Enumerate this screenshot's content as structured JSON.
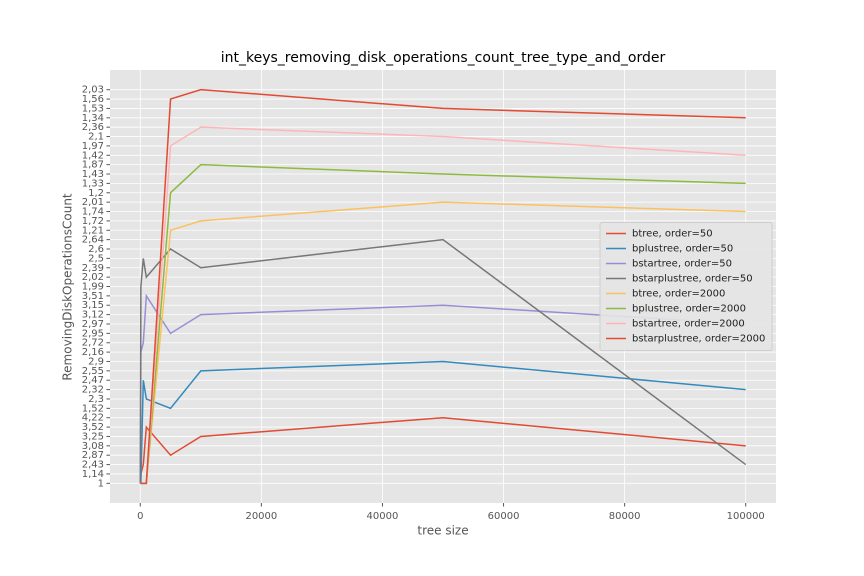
{
  "chart_data": {
    "type": "line",
    "title": "int_keys_removing_disk_operations_count_tree_type_and_order",
    "x_label": "tree size",
    "y_label": "RemovingDiskOperationsCount",
    "x": [
      10,
      100,
      500,
      1000,
      5000,
      10000,
      50000,
      100000
    ],
    "xlim": [
      -5000,
      105000
    ],
    "xticks": [
      0,
      20000,
      40000,
      60000,
      80000,
      100000
    ],
    "ylim": [
      -2.1,
      44.1
    ],
    "yticks": [
      {
        "value": 0,
        "label": "1"
      },
      {
        "value": 1,
        "label": "1,14"
      },
      {
        "value": 2,
        "label": "2,43"
      },
      {
        "value": 3,
        "label": "2,87"
      },
      {
        "value": 4,
        "label": "3,08"
      },
      {
        "value": 5,
        "label": "3,25"
      },
      {
        "value": 6,
        "label": "3,52"
      },
      {
        "value": 7,
        "label": "4,22"
      },
      {
        "value": 8,
        "label": "1,52"
      },
      {
        "value": 9,
        "label": "2,3"
      },
      {
        "value": 10,
        "label": "2,32"
      },
      {
        "value": 11,
        "label": "2,47"
      },
      {
        "value": 12,
        "label": "2,55"
      },
      {
        "value": 13,
        "label": "2,9"
      },
      {
        "value": 14,
        "label": "2,16"
      },
      {
        "value": 15,
        "label": "2,72"
      },
      {
        "value": 16,
        "label": "2,95"
      },
      {
        "value": 17,
        "label": "2,97"
      },
      {
        "value": 18,
        "label": "3,12"
      },
      {
        "value": 19,
        "label": "3,15"
      },
      {
        "value": 20,
        "label": "3,51"
      },
      {
        "value": 21,
        "label": "1,99"
      },
      {
        "value": 22,
        "label": "2,02"
      },
      {
        "value": 23,
        "label": "2,39"
      },
      {
        "value": 24,
        "label": "2,5"
      },
      {
        "value": 25,
        "label": "2,6"
      },
      {
        "value": 26,
        "label": "2,64"
      },
      {
        "value": 27,
        "label": "1,21"
      },
      {
        "value": 28,
        "label": "1,72"
      },
      {
        "value": 29,
        "label": "1,74"
      },
      {
        "value": 30,
        "label": "2,01"
      },
      {
        "value": 31,
        "label": "1,2"
      },
      {
        "value": 32,
        "label": "1,33"
      },
      {
        "value": 33,
        "label": "1,43"
      },
      {
        "value": 34,
        "label": "1,87"
      },
      {
        "value": 35,
        "label": "1,42"
      },
      {
        "value": 36,
        "label": "1,97"
      },
      {
        "value": 37,
        "label": "2,1"
      },
      {
        "value": 38,
        "label": "2,36"
      },
      {
        "value": 39,
        "label": "1,34"
      },
      {
        "value": 40,
        "label": "1,53"
      },
      {
        "value": 41,
        "label": "1,56"
      },
      {
        "value": 42,
        "label": "2,03"
      }
    ],
    "grid": true,
    "legend": "center right",
    "series": [
      {
        "name": "btree, order=50",
        "color": "#E24A33",
        "values": [
          0,
          1,
          2,
          6,
          3,
          5,
          7,
          4
        ]
      },
      {
        "name": "bplustree, order=50",
        "color": "#348ABD",
        "values": [
          0,
          0,
          11,
          9,
          8,
          12,
          13,
          10
        ]
      },
      {
        "name": "bstartree, order=50",
        "color": "#988ED5",
        "values": [
          0,
          14,
          15,
          20,
          16,
          18,
          19,
          17
        ]
      },
      {
        "name": "bstarplustree, order=50",
        "color": "#777777",
        "values": [
          0,
          21,
          24,
          22,
          25,
          23,
          26,
          2
        ]
      },
      {
        "name": "btree, order=2000",
        "color": "#FBC15E",
        "values": [
          0,
          0,
          0,
          0,
          27,
          28,
          30,
          29
        ]
      },
      {
        "name": "bplustree, order=2000",
        "color": "#8EBA42",
        "values": [
          0,
          0,
          0,
          0,
          31,
          34,
          33,
          32
        ]
      },
      {
        "name": "bstartree, order=2000",
        "color": "#FFB5B8",
        "values": [
          0,
          0,
          0,
          0,
          36,
          38,
          37,
          35
        ]
      },
      {
        "name": "bstarplustree, order=2000",
        "color": "#E24A33",
        "values": [
          0,
          0,
          0,
          0,
          41,
          42,
          40,
          39
        ]
      }
    ]
  }
}
